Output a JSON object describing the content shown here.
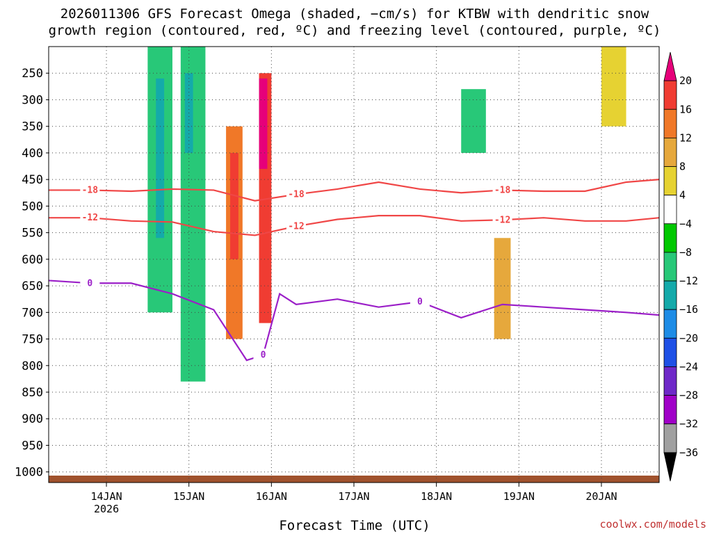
{
  "chart_data": {
    "type": "heatmap",
    "title_line1": "2026011306 GFS Forecast Omega (shaded, −cm/s) for KTBW with dendritic snow",
    "title_line2": "growth region (contoured, red, ºC) and freezing level (contoured, purple, ºC)",
    "xlabel": "Forecast Time (UTC)",
    "credit": "coolwx.com/models",
    "x_ticks": [
      {
        "t": 0.7,
        "label": "14JAN",
        "sub": "2026"
      },
      {
        "t": 1.7,
        "label": "15JAN",
        "sub": ""
      },
      {
        "t": 2.7,
        "label": "16JAN",
        "sub": ""
      },
      {
        "t": 3.7,
        "label": "17JAN",
        "sub": ""
      },
      {
        "t": 4.7,
        "label": "18JAN",
        "sub": ""
      },
      {
        "t": 5.7,
        "label": "19JAN",
        "sub": ""
      },
      {
        "t": 6.7,
        "label": "20JAN",
        "sub": ""
      }
    ],
    "xlim": [
      0,
      7.4
    ],
    "y_ticks": [
      250,
      300,
      350,
      400,
      450,
      500,
      550,
      600,
      650,
      700,
      750,
      800,
      850,
      900,
      950,
      1000
    ],
    "ylim": [
      200,
      1020
    ],
    "colorbar": {
      "labels": [
        "20",
        "16",
        "12",
        "8",
        "4",
        "−4",
        "−8",
        "−12",
        "−16",
        "−20",
        "−24",
        "−28",
        "−32",
        "−36"
      ],
      "colors": [
        "#e6007a",
        "#f03c32",
        "#f07828",
        "#e6a83c",
        "#e6d232",
        "#ffffff",
        "#00c800",
        "#28c878",
        "#14aaaa",
        "#1e8ce6",
        "#1e50e6",
        "#6e28c8",
        "#a000c8",
        "#a0a0a0",
        "#000000"
      ]
    },
    "contours": [
      {
        "label": "-18",
        "color": "#f04646",
        "t": [
          0,
          0.5,
          1.0,
          1.5,
          2.0,
          2.5,
          3.0,
          3.5,
          4.0,
          4.5,
          5.0,
          5.5,
          6.0,
          6.5,
          7.0,
          7.4
        ],
        "p": [
          470,
          470,
          472,
          468,
          470,
          490,
          478,
          468,
          455,
          468,
          475,
          470,
          472,
          472,
          455,
          450
        ]
      },
      {
        "label": "-12",
        "color": "#f04646",
        "t": [
          0,
          0.5,
          1.0,
          1.5,
          2.0,
          2.5,
          3.0,
          3.5,
          4.0,
          4.5,
          5.0,
          5.5,
          6.0,
          6.5,
          7.0,
          7.4
        ],
        "p": [
          522,
          522,
          528,
          530,
          548,
          555,
          538,
          525,
          518,
          518,
          528,
          526,
          522,
          528,
          528,
          522
        ]
      },
      {
        "label": "0",
        "color": "#9b1fc8",
        "t": [
          0,
          0.5,
          1.0,
          1.5,
          2.0,
          2.4,
          2.6,
          2.8,
          3.0,
          3.5,
          4.0,
          4.5,
          5.0,
          5.5,
          6.0,
          6.5,
          7.0,
          7.4
        ],
        "p": [
          640,
          645,
          645,
          665,
          695,
          790,
          780,
          665,
          685,
          675,
          690,
          680,
          710,
          685,
          690,
          695,
          700,
          705
        ]
      }
    ],
    "omega_cells": [
      {
        "t0": 1.2,
        "t1": 1.5,
        "p0": 200,
        "p1": 700,
        "v": -8
      },
      {
        "t0": 1.3,
        "t1": 1.4,
        "p0": 260,
        "p1": 560,
        "v": -14
      },
      {
        "t0": 1.6,
        "t1": 1.9,
        "p0": 200,
        "p1": 830,
        "v": -8
      },
      {
        "t0": 1.65,
        "t1": 1.75,
        "p0": 250,
        "p1": 400,
        "v": -12
      },
      {
        "t0": 2.15,
        "t1": 2.35,
        "p0": 350,
        "p1": 750,
        "v": 12
      },
      {
        "t0": 2.2,
        "t1": 2.3,
        "p0": 400,
        "p1": 600,
        "v": 16
      },
      {
        "t0": 2.55,
        "t1": 2.7,
        "p0": 250,
        "p1": 720,
        "v": 16
      },
      {
        "t0": 2.55,
        "t1": 2.65,
        "p0": 260,
        "p1": 430,
        "v": 20
      },
      {
        "t0": 5.0,
        "t1": 5.3,
        "p0": 280,
        "p1": 400,
        "v": -8
      },
      {
        "t0": 5.4,
        "t1": 5.6,
        "p0": 560,
        "p1": 750,
        "v": 10
      },
      {
        "t0": 6.7,
        "t1": 7.0,
        "p0": 200,
        "p1": 350,
        "v": 5
      }
    ]
  }
}
